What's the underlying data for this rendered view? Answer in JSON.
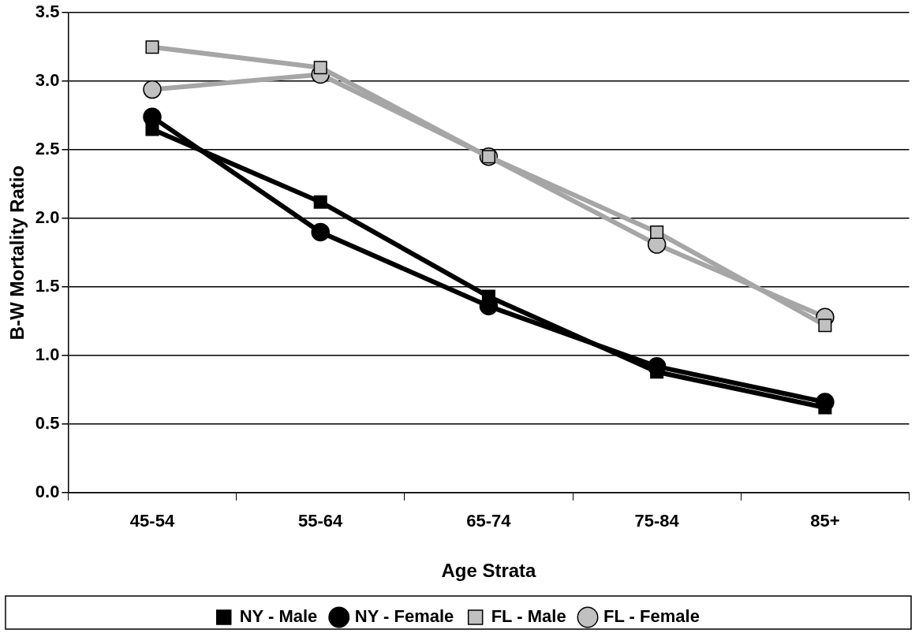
{
  "chart_data": {
    "type": "line",
    "xlabel": "Age Strata",
    "ylabel": "B-W Mortality Ratio",
    "categories": [
      "45-54",
      "55-64",
      "65-74",
      "75-84",
      "85+"
    ],
    "series": [
      {
        "name": "NY - Male",
        "color": "#000000",
        "marker": "square",
        "values": [
          2.65,
          2.12,
          1.43,
          0.88,
          0.62
        ]
      },
      {
        "name": "NY - Female",
        "color": "#000000",
        "marker": "circle",
        "values": [
          2.74,
          1.9,
          1.36,
          0.92,
          0.66
        ]
      },
      {
        "name": "FL - Male",
        "color": "#a6a6a6",
        "marker": "square",
        "values": [
          3.25,
          3.1,
          2.45,
          1.9,
          1.22
        ]
      },
      {
        "name": "FL - Female",
        "color": "#a6a6a6",
        "marker": "circle",
        "values": [
          2.94,
          3.05,
          2.45,
          1.81,
          1.28
        ]
      }
    ],
    "ylim": [
      0,
      3.5
    ],
    "yticks": [
      {
        "value": 0,
        "label": "0.0"
      },
      {
        "value": 0.5,
        "label": "0.5"
      },
      {
        "value": 1,
        "label": "1.0"
      },
      {
        "value": 1.5,
        "label": "1.5"
      },
      {
        "value": 2,
        "label": "2.0"
      },
      {
        "value": 2.5,
        "label": "2.5"
      },
      {
        "value": 3,
        "label": "3.0"
      },
      {
        "value": 3.5,
        "label": "3.5"
      }
    ],
    "grid": "y",
    "legend": "bottom",
    "line_style": "solid"
  }
}
